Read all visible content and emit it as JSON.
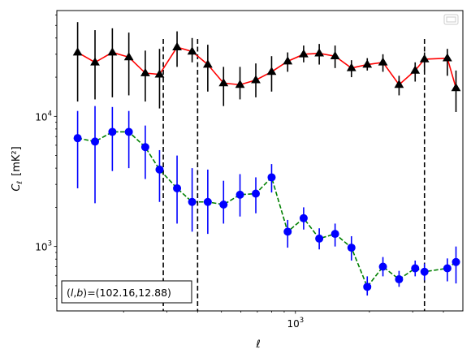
{
  "chart_data": {
    "type": "line",
    "xlabel": "ℓ",
    "ylabel_main": "C",
    "ylabel_sub": "ℓ",
    "ylabel_unit": "[mK²]",
    "xscale": "log",
    "yscale": "log",
    "xlim": [
      107,
      4800
    ],
    "ylim": [
      320,
      65000
    ],
    "x_tick_labels": [
      {
        "value": 1000,
        "base": "10",
        "exp": "3"
      }
    ],
    "y_tick_labels": [
      {
        "value": 1000,
        "base": "10",
        "exp": "3"
      },
      {
        "value": 10000,
        "base": "10",
        "exp": "4"
      }
    ],
    "annotation": "(l,b)=(102.16,12.88)",
    "annotation_parts": {
      "lhs_l": "l",
      "lhs_b": "b",
      "rhs": "=(102.16,12.88)"
    },
    "legend": {
      "placement": "top-right",
      "entries": []
    },
    "vlines": [
      290,
      400,
      3350
    ],
    "series": [
      {
        "marker": "triangle",
        "color": "#000000",
        "line_color": "#ff0000",
        "line_style": "solid",
        "x": [
          130,
          153,
          180,
          210,
          245,
          280,
          330,
          380,
          440,
          510,
          595,
          690,
          800,
          930,
          1080,
          1250,
          1450,
          1690,
          1960,
          2270,
          2640,
          3070,
          3350,
          4150,
          4500
        ],
        "y": [
          31000,
          26000,
          31000,
          28500,
          21500,
          21000,
          34000,
          31500,
          25000,
          18000,
          17500,
          19000,
          22000,
          26500,
          30000,
          30500,
          29000,
          23500,
          25000,
          26000,
          17500,
          22500,
          27500,
          28000,
          16500
        ],
        "yerr_low": [
          13000,
          13500,
          14000,
          14500,
          13000,
          11500,
          24000,
          26000,
          15500,
          12000,
          13500,
          14000,
          15500,
          22000,
          26000,
          25000,
          23500,
          20000,
          22500,
          22000,
          14500,
          18500,
          22000,
          20500,
          10800
        ],
        "yerr_high": [
          53000,
          46000,
          47500,
          44000,
          32000,
          33000,
          45000,
          40000,
          35500,
          24000,
          24000,
          25500,
          29000,
          31000,
          35000,
          36000,
          35000,
          27000,
          28000,
          30000,
          20500,
          26000,
          31000,
          33000,
          22500
        ]
      },
      {
        "marker": "circle",
        "color": "#0000ff",
        "line_color": "#008000",
        "line_style": "dashed",
        "x": [
          130,
          153,
          180,
          210,
          245,
          280,
          330,
          380,
          440,
          510,
          595,
          690,
          800,
          930,
          1080,
          1250,
          1450,
          1690,
          1960,
          2270,
          2640,
          3070,
          3350,
          4150,
          4500
        ],
        "y": [
          6800,
          6400,
          7600,
          7600,
          5800,
          3900,
          2800,
          2200,
          2200,
          2100,
          2500,
          2550,
          3400,
          1300,
          1650,
          1150,
          1250,
          980,
          490,
          700,
          560,
          680,
          640,
          680,
          760
        ],
        "yerr_low": [
          2800,
          2150,
          3800,
          4000,
          3300,
          2200,
          1500,
          1300,
          1250,
          1500,
          1700,
          1800,
          2600,
          980,
          1350,
          950,
          1000,
          780,
          420,
          590,
          490,
          590,
          550,
          540,
          520
        ],
        "yerr_high": [
          11000,
          12000,
          11800,
          11000,
          8500,
          5500,
          5000,
          4000,
          3900,
          3200,
          3600,
          3400,
          4300,
          1600,
          2000,
          1380,
          1500,
          1200,
          590,
          830,
          650,
          780,
          740,
          810,
          1000
        ]
      }
    ]
  }
}
